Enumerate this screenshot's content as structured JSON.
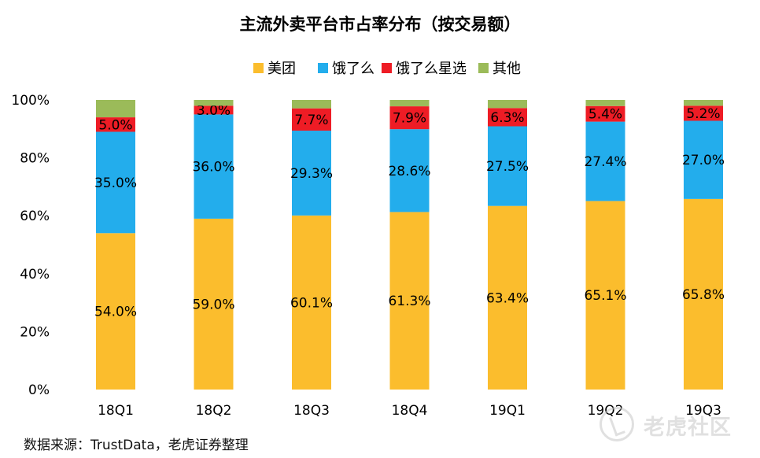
{
  "chart_data": {
    "type": "bar",
    "stacked": true,
    "title": "主流外卖平台市占率分布（按交易额）",
    "categories": [
      "18Q1",
      "18Q2",
      "18Q3",
      "18Q4",
      "19Q1",
      "19Q2",
      "19Q3"
    ],
    "series": [
      {
        "name": "美团",
        "color": "#FBBD2D",
        "values": [
          54.0,
          59.0,
          60.1,
          61.3,
          63.4,
          65.1,
          65.8
        ],
        "labels": [
          "54.0%",
          "59.0%",
          "60.1%",
          "61.3%",
          "63.4%",
          "65.1%",
          "65.8%"
        ]
      },
      {
        "name": "饿了么",
        "color": "#23ADEC",
        "values": [
          35.0,
          36.0,
          29.3,
          28.6,
          27.5,
          27.4,
          27.0
        ],
        "labels": [
          "35.0%",
          "36.0%",
          "29.3%",
          "28.6%",
          "27.5%",
          "27.4%",
          "27.0%"
        ]
      },
      {
        "name": "饿了么星选",
        "color": "#EE1C25",
        "values": [
          5.0,
          3.0,
          7.7,
          7.9,
          6.3,
          5.4,
          5.2
        ],
        "labels": [
          "5.0%",
          "3.0%",
          "7.7%",
          "7.9%",
          "6.3%",
          "5.4%",
          "5.2%"
        ]
      },
      {
        "name": "其他",
        "color": "#9BBB59",
        "values": [
          6.0,
          2.0,
          2.9,
          2.2,
          2.8,
          2.1,
          2.0
        ],
        "labels": []
      }
    ],
    "y_ticks": [
      "0%",
      "20%",
      "40%",
      "60%",
      "80%",
      "100%"
    ],
    "ylim": [
      0,
      100
    ],
    "legend": "top-center",
    "grid": false
  },
  "source": "数据来源：TrustData，老虎证券整理",
  "watermark": "老虎社区"
}
